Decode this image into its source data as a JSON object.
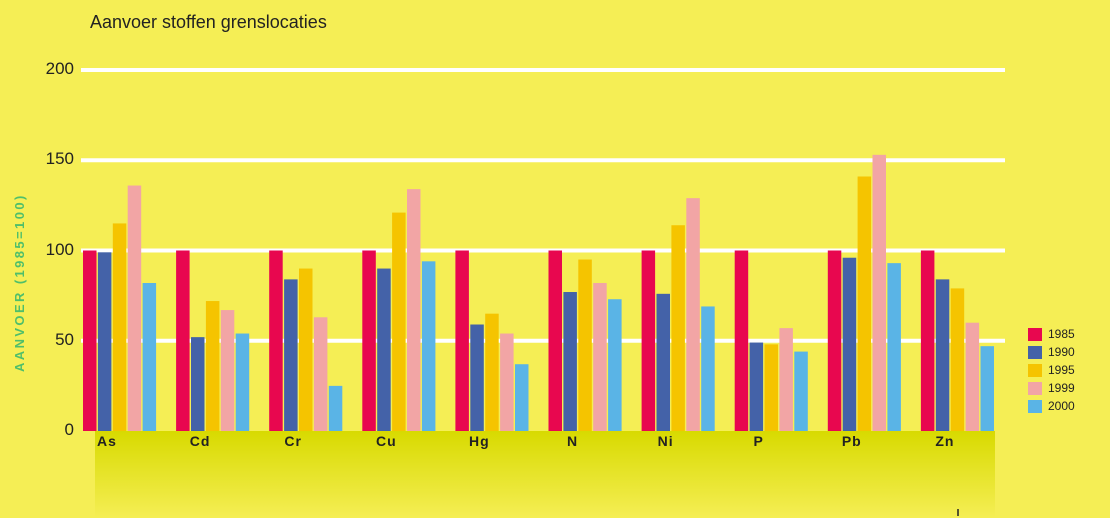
{
  "chart_data": {
    "type": "bar",
    "title": "Aanvoer stoffen grenslocaties",
    "ylabel": "AANVOER (1985=100)",
    "xlabel": "",
    "ylim": [
      0,
      200
    ],
    "yticks": [
      "0",
      "50",
      "100",
      "150",
      "200"
    ],
    "grid": true,
    "legend_position": "right",
    "categories": [
      "As",
      "Cd",
      "Cr",
      "Cu",
      "Hg",
      "N",
      "Ni",
      "P",
      "Pb",
      "Zn"
    ],
    "series": [
      {
        "name": "1985",
        "color": "#e8074f",
        "values": [
          100,
          100,
          100,
          100,
          100,
          100,
          100,
          100,
          100,
          100
        ]
      },
      {
        "name": "1990",
        "color": "#4462a8",
        "values": [
          99,
          52,
          84,
          90,
          59,
          77,
          76,
          49,
          96,
          84
        ]
      },
      {
        "name": "1995",
        "color": "#f5c400",
        "values": [
          115,
          72,
          90,
          121,
          65,
          95,
          114,
          48,
          141,
          79
        ]
      },
      {
        "name": "1999",
        "color": "#f2a5a5",
        "values": [
          136,
          67,
          63,
          134,
          54,
          82,
          129,
          57,
          153,
          60
        ]
      },
      {
        "name": "2000",
        "color": "#5ab4e6",
        "values": [
          82,
          54,
          25,
          94,
          37,
          73,
          69,
          44,
          93,
          47
        ]
      }
    ]
  }
}
